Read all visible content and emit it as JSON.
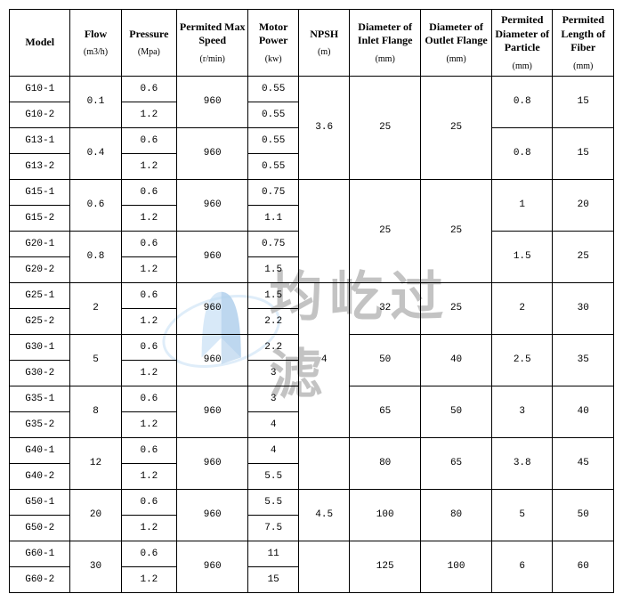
{
  "headers": [
    {
      "title": "Model",
      "unit": ""
    },
    {
      "title": "Flow",
      "unit": "(m3/h)"
    },
    {
      "title": "Pressure",
      "unit": "(Mpa)"
    },
    {
      "title": "Permited Max Speed",
      "unit": "(r/min)"
    },
    {
      "title": "Motor Power",
      "unit": "(kw)"
    },
    {
      "title": "NPSH",
      "unit": "(m)"
    },
    {
      "title": "Diameter of Inlet Flange",
      "unit": "(mm)"
    },
    {
      "title": "Diameter of Outlet Flange",
      "unit": "(mm)"
    },
    {
      "title": "Permited Diameter of Particle",
      "unit": "(mm)"
    },
    {
      "title": "Permited Length of Fiber",
      "unit": "(mm)"
    }
  ],
  "groups": [
    {
      "models": [
        "G10-1",
        "G10-2"
      ],
      "flow": "0.1",
      "pressure": [
        "0.6",
        "1.2"
      ],
      "speed": "960",
      "power": [
        "0.55",
        "0.55"
      ],
      "inlet": "25",
      "outlet": "25",
      "particle": "0.8",
      "fiber": "15",
      "inlet_span": 4,
      "outlet_span": 4,
      "npsh": "3.6",
      "npsh_span": 4
    },
    {
      "models": [
        "G13-1",
        "G13-2"
      ],
      "flow": "0.4",
      "pressure": [
        "0.6",
        "1.2"
      ],
      "speed": "960",
      "power": [
        "0.55",
        "0.55"
      ],
      "particle": "0.8",
      "fiber": "15"
    },
    {
      "models": [
        "G15-1",
        "G15-2"
      ],
      "flow": "0.6",
      "pressure": [
        "0.6",
        "1.2"
      ],
      "speed": "960",
      "power": [
        "0.75",
        "1.1"
      ],
      "inlet": "",
      "outlet": "",
      "inlet_span": 4,
      "outlet_span": 4,
      "particle": "1",
      "fiber": "20",
      "npsh": "",
      "npsh_span": 4
    },
    {
      "models": [
        "G20-1",
        "G20-2"
      ],
      "flow": "0.8",
      "pressure": [
        "0.6",
        "1.2"
      ],
      "speed": "960",
      "power": [
        "0.75",
        "1.5"
      ],
      "inlet_mid": "25",
      "outlet_mid": "25",
      "particle": "1.5",
      "fiber": "25"
    },
    {
      "models": [
        "G25-1",
        "G25-2"
      ],
      "flow": "2",
      "pressure": [
        "0.6",
        "1.2"
      ],
      "speed": "960",
      "power": [
        "1.5",
        "2.2"
      ],
      "inlet": "32",
      "outlet": "25",
      "inlet_span": 2,
      "outlet_span": 2,
      "particle": "2",
      "fiber": "30",
      "npsh": "",
      "npsh_span": 6
    },
    {
      "models": [
        "G30-1",
        "G30-2"
      ],
      "flow": "5",
      "pressure": [
        "0.6",
        "1.2"
      ],
      "speed": "960",
      "power": [
        "2.2",
        "3"
      ],
      "inlet": "50",
      "outlet": "40",
      "inlet_span": 2,
      "outlet_span": 2,
      "particle": "2.5",
      "fiber": "35",
      "npsh_mid": "4"
    },
    {
      "models": [
        "G35-1",
        "G35-2"
      ],
      "flow": "8",
      "pressure": [
        "0.6",
        "1.2"
      ],
      "speed": "960",
      "power": [
        "3",
        "4"
      ],
      "inlet": "65",
      "outlet": "50",
      "inlet_span": 2,
      "outlet_span": 2,
      "particle": "3",
      "fiber": "40"
    },
    {
      "models": [
        "G40-1",
        "G40-2"
      ],
      "flow": "12",
      "pressure": [
        "0.6",
        "1.2"
      ],
      "speed": "960",
      "power": [
        "4",
        "5.5"
      ],
      "inlet": "80",
      "outlet": "65",
      "inlet_span": 2,
      "outlet_span": 2,
      "particle": "3.8",
      "fiber": "45",
      "npsh": "",
      "npsh_span": 2
    },
    {
      "models": [
        "G50-1",
        "G50-2"
      ],
      "flow": "20",
      "pressure": [
        "0.6",
        "1.2"
      ],
      "speed": "960",
      "power": [
        "5.5",
        "7.5"
      ],
      "inlet": "100",
      "outlet": "80",
      "inlet_span": 2,
      "outlet_span": 2,
      "particle": "5",
      "fiber": "50",
      "npsh": "4.5",
      "npsh_span": 2
    },
    {
      "models": [
        "G60-1",
        "G60-2"
      ],
      "flow": "30",
      "pressure": [
        "0.6",
        "1.2"
      ],
      "speed": "960",
      "power": [
        "11",
        "15"
      ],
      "inlet": "125",
      "outlet": "100",
      "inlet_span": 2,
      "outlet_span": 2,
      "particle": "6",
      "fiber": "60",
      "npsh": "",
      "npsh_span": 2
    }
  ],
  "col_widths": [
    "60",
    "50",
    "55",
    "70",
    "50",
    "50",
    "70",
    "70",
    "60",
    "60"
  ],
  "watermark_text": "均屹过滤",
  "watermark_colors": {
    "blue": "#7fb8e8",
    "gray": "#888888"
  }
}
